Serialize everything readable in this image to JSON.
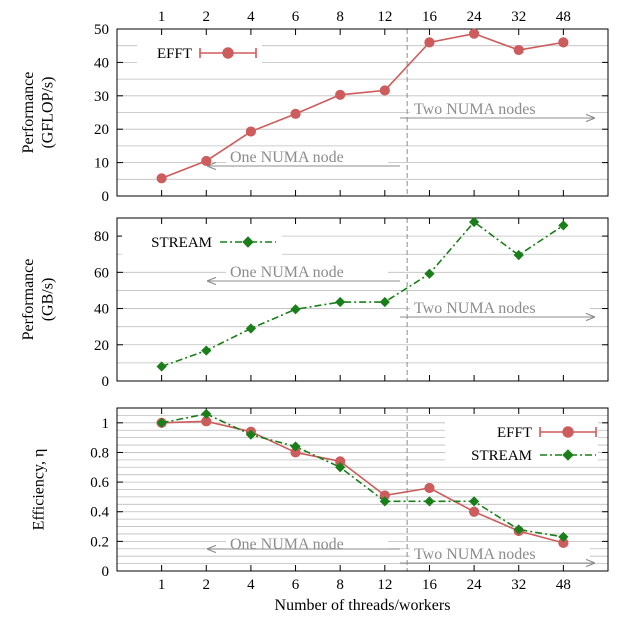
{
  "chart_data": {
    "type": "line",
    "categories": [
      "1",
      "2",
      "4",
      "6",
      "8",
      "12",
      "16",
      "24",
      "32",
      "48"
    ],
    "xlabel": "Number of threads/workers",
    "numa_divider_after_category": "12",
    "numa_labels": {
      "one": "One NUMA node",
      "two": "Two NUMA nodes"
    },
    "panels": [
      {
        "id": "performance-gflops",
        "ylabel": [
          "Performance",
          "(GFLOP/s)"
        ],
        "ylim": [
          0,
          50
        ],
        "yticks": [
          0,
          10,
          20,
          30,
          40,
          50
        ],
        "grid": true,
        "legend_position": "top-left",
        "series": [
          {
            "name": "EFFT",
            "color": "#cd5c5c",
            "marker": "circle",
            "dash": "solid",
            "values": [
              5.3,
              10.5,
              19.3,
              24.6,
              30.3,
              31.6,
              46.0,
              48.6,
              43.7,
              46.0
            ]
          }
        ]
      },
      {
        "id": "performance-gbs",
        "ylabel": [
          "Performance",
          "(GB/s)"
        ],
        "ylim": [
          0,
          90
        ],
        "yticks": [
          0,
          20,
          40,
          60,
          80
        ],
        "grid": true,
        "legend_position": "top-left",
        "series": [
          {
            "name": "STREAM",
            "color": "#1a7f1a",
            "marker": "diamond",
            "dash": "dashdot",
            "values": [
              8.0,
              16.8,
              29.0,
              39.6,
              43.6,
              43.6,
              59.2,
              87.8,
              69.5,
              85.9
            ]
          }
        ]
      },
      {
        "id": "efficiency",
        "ylabel": [
          "Efficiency, η"
        ],
        "ylim": [
          0,
          1.1
        ],
        "yticks": [
          0,
          0.2,
          0.4,
          0.6,
          0.8,
          1
        ],
        "grid": true,
        "legend_position": "top-right",
        "series": [
          {
            "name": "EFFT",
            "color": "#cd5c5c",
            "marker": "circle",
            "dash": "solid",
            "values": [
              1.0,
              1.01,
              0.94,
              0.8,
              0.74,
              0.51,
              0.56,
              0.4,
              0.27,
              0.19
            ]
          },
          {
            "name": "STREAM",
            "color": "#1a7f1a",
            "marker": "diamond",
            "dash": "dashdot",
            "values": [
              1.0,
              1.06,
              0.92,
              0.84,
              0.7,
              0.47,
              0.47,
              0.47,
              0.28,
              0.23
            ]
          }
        ]
      }
    ]
  }
}
